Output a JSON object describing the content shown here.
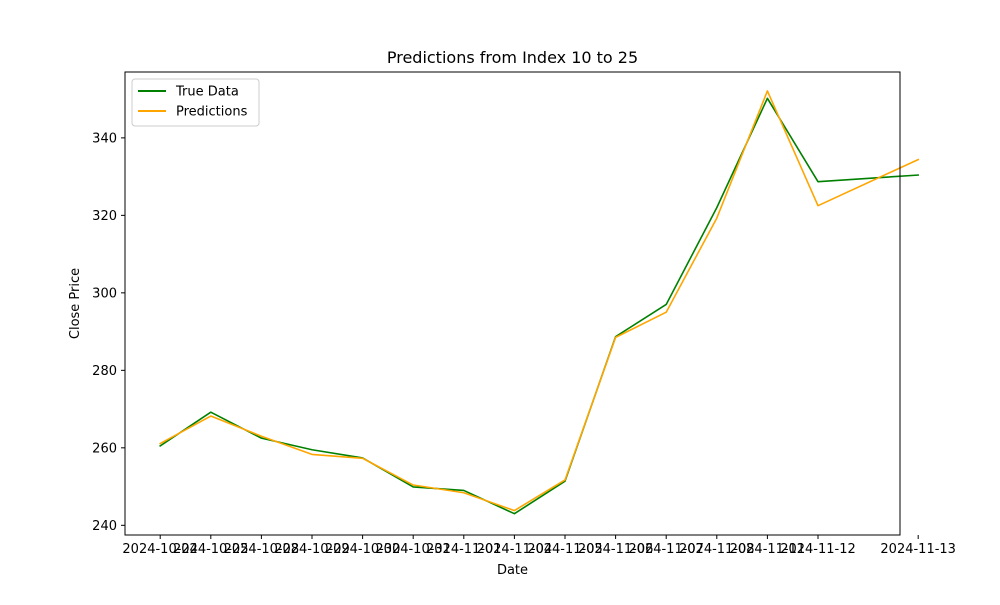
{
  "chart_data": {
    "type": "line",
    "title": "Predictions from Index 10 to 25",
    "xlabel": "Date",
    "ylabel": "Close Price",
    "categories": [
      "2024-10-24",
      "2024-10-25",
      "2024-10-28",
      "2024-10-29",
      "2024-10-30",
      "2024-10-31",
      "2024-11-01",
      "2024-11-04",
      "2024-11-05",
      "2024-11-06",
      "2024-11-07",
      "2024-11-08",
      "2024-11-11",
      "2024-11-12",
      "2024-11-13"
    ],
    "x_plot_index": [
      0,
      1,
      2,
      3,
      4,
      5,
      6,
      7,
      8,
      9,
      10,
      11,
      12,
      13,
      14.98
    ],
    "ylim": [
      237.5,
      357.0
    ],
    "yticks": [
      240,
      260,
      280,
      300,
      320,
      340
    ],
    "grid": false,
    "legend_position": "top-left",
    "series": [
      {
        "name": "True Data",
        "color": "#008000",
        "values": [
          260.5,
          269.2,
          262.5,
          259.5,
          257.4,
          249.9,
          249.0,
          243.0,
          251.4,
          288.7,
          297.0,
          322.0,
          350.2,
          328.7,
          330.4
        ]
      },
      {
        "name": "Predictions",
        "color": "#FFA500",
        "values": [
          261.1,
          268.2,
          263.0,
          258.3,
          257.3,
          250.4,
          248.4,
          243.8,
          251.7,
          288.5,
          295.0,
          319.3,
          352.1,
          322.5,
          334.4
        ]
      }
    ]
  }
}
